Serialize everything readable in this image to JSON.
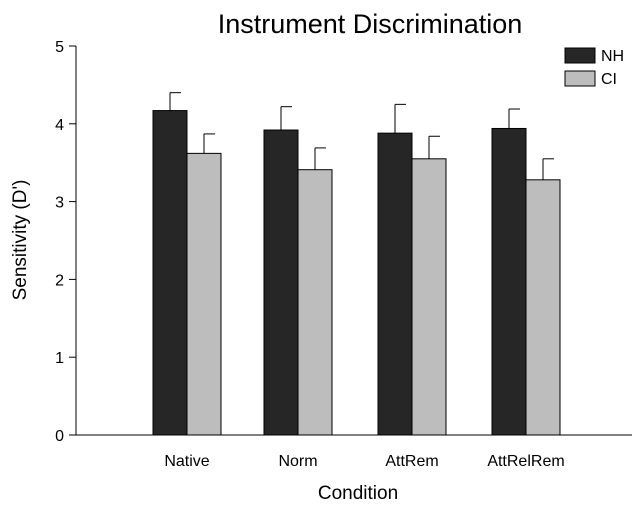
{
  "chart_data": {
    "type": "bar",
    "title": "Instrument Discrimination",
    "xlabel": "Condition",
    "ylabel": "Sensitivity (D')",
    "categories": [
      "Native",
      "Norm",
      "AttRem",
      "AttRelRem"
    ],
    "ylim": [
      0,
      5
    ],
    "yticks": [
      0,
      1,
      2,
      3,
      4,
      5
    ],
    "grid": false,
    "legend_position": "top-right",
    "series": [
      {
        "name": "NH",
        "color": "#262626",
        "values": [
          4.17,
          3.92,
          3.88,
          3.94
        ],
        "errors": [
          0.23,
          0.3,
          0.37,
          0.25
        ]
      },
      {
        "name": "CI",
        "color": "#bdbdbd",
        "values": [
          3.62,
          3.41,
          3.55,
          3.28
        ],
        "errors": [
          0.25,
          0.28,
          0.29,
          0.27
        ]
      }
    ]
  }
}
